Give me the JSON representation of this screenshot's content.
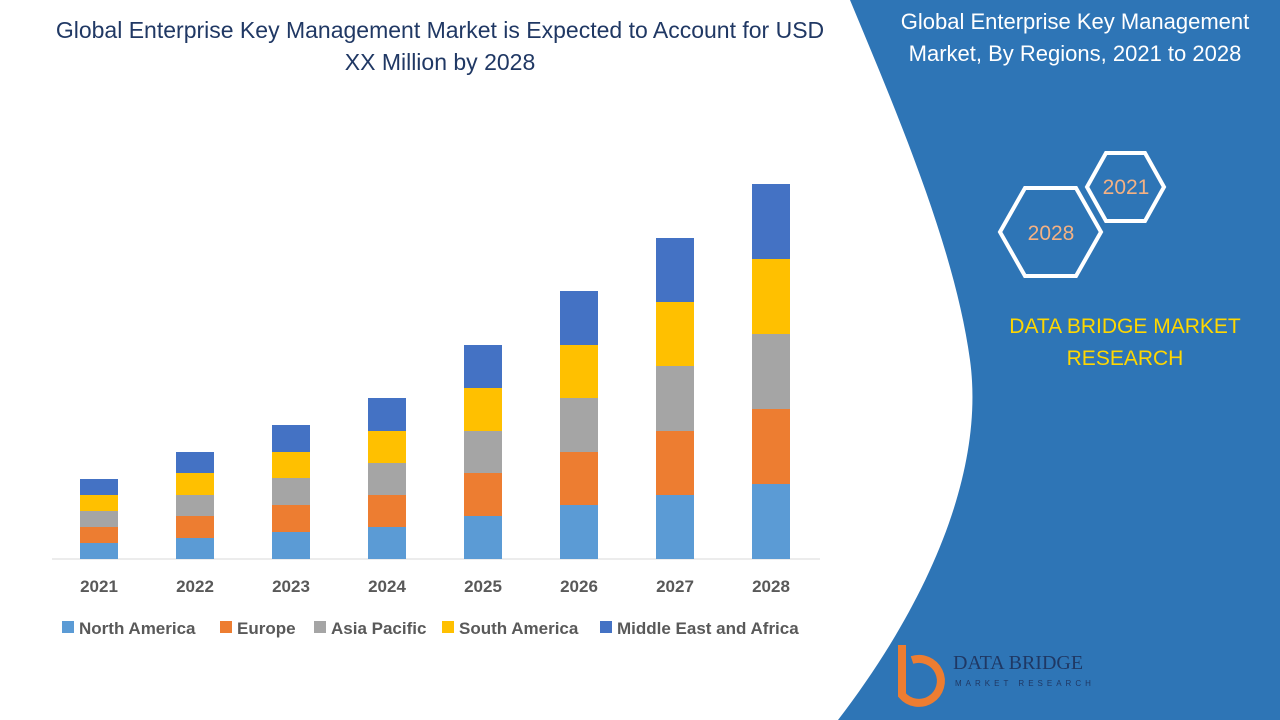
{
  "chart_data": {
    "type": "bar",
    "stacked": true,
    "title": "Global Enterprise Key Management Market is Expected to Account for USD XX Million by 2028",
    "categories": [
      "2021",
      "2022",
      "2023",
      "2024",
      "2025",
      "2026",
      "2027",
      "2028"
    ],
    "series": [
      {
        "name": "North America",
        "color": "#5b9bd5",
        "values": [
          16,
          21,
          27,
          32,
          43,
          54,
          64,
          75
        ]
      },
      {
        "name": "Europe",
        "color": "#ed7d31",
        "values": [
          16,
          22,
          27,
          32,
          43,
          53,
          64,
          75
        ]
      },
      {
        "name": "Asia Pacific",
        "color": "#a5a5a5",
        "values": [
          16,
          21,
          27,
          32,
          42,
          54,
          65,
          75
        ]
      },
      {
        "name": "South America",
        "color": "#ffc000",
        "values": [
          16,
          22,
          26,
          32,
          43,
          53,
          64,
          75
        ]
      },
      {
        "name": "Middle East and Africa",
        "color": "#4472c4",
        "values": [
          16,
          21,
          27,
          33,
          43,
          54,
          64,
          75
        ]
      }
    ],
    "ylim": [
      0,
      400
    ],
    "grid": false
  },
  "panel": {
    "title": "Global Enterprise Key Management Market, By Regions, 2021 to 2028",
    "hexagons": [
      "2021",
      "2028"
    ],
    "brand": "DATA BRIDGE MARKET RESEARCH",
    "logo": {
      "name": "DATA BRIDGE",
      "tagline": "MARKET RESEARCH"
    }
  }
}
